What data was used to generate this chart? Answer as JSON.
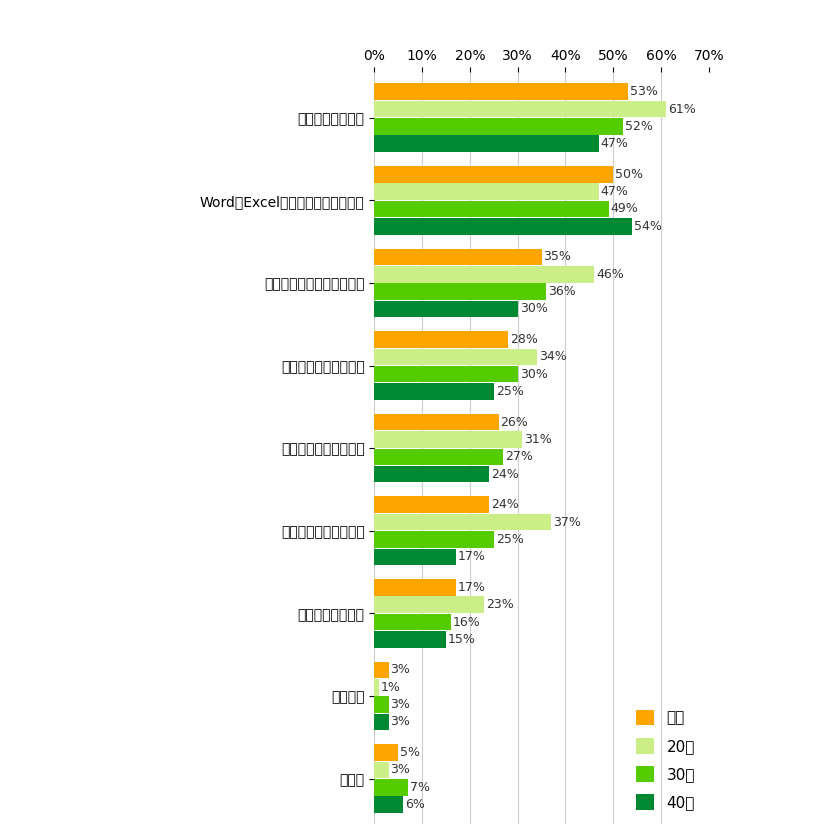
{
  "categories": [
    "英語などの語学力",
    "Word・Excelなどのパソコンスキル",
    "自分の意見を伝える会話力",
    "コツコツ続ける継続力",
    "聂き上手になる傾聴力",
    "敗語・ビジネスマナー",
    "販売・接客スキル",
    "特になし",
    "その他"
  ],
  "series": {
    "全体": [
      53,
      50,
      35,
      28,
      26,
      24,
      17,
      3,
      5
    ],
    "20代": [
      61,
      47,
      46,
      34,
      31,
      37,
      23,
      1,
      3
    ],
    "30代": [
      52,
      49,
      36,
      30,
      27,
      25,
      16,
      3,
      7
    ],
    "40代": [
      47,
      54,
      30,
      25,
      24,
      17,
      15,
      3,
      6
    ]
  },
  "colors": {
    "全体": "#FFA500",
    "20代": "#CCEE88",
    "30代": "#55CC00",
    "40代": "#008833"
  },
  "series_order": [
    "全体",
    "20代",
    "30代",
    "40代"
  ],
  "xlim": [
    0,
    70
  ],
  "xticks": [
    0,
    10,
    20,
    30,
    40,
    50,
    60,
    70
  ],
  "bar_height": 0.2,
  "fontsize_label": 10,
  "fontsize_value": 9,
  "fontsize_tick": 10,
  "fontsize_legend": 11,
  "background_color": "#ffffff",
  "value_color": "#333333",
  "grid_color": "#cccccc"
}
